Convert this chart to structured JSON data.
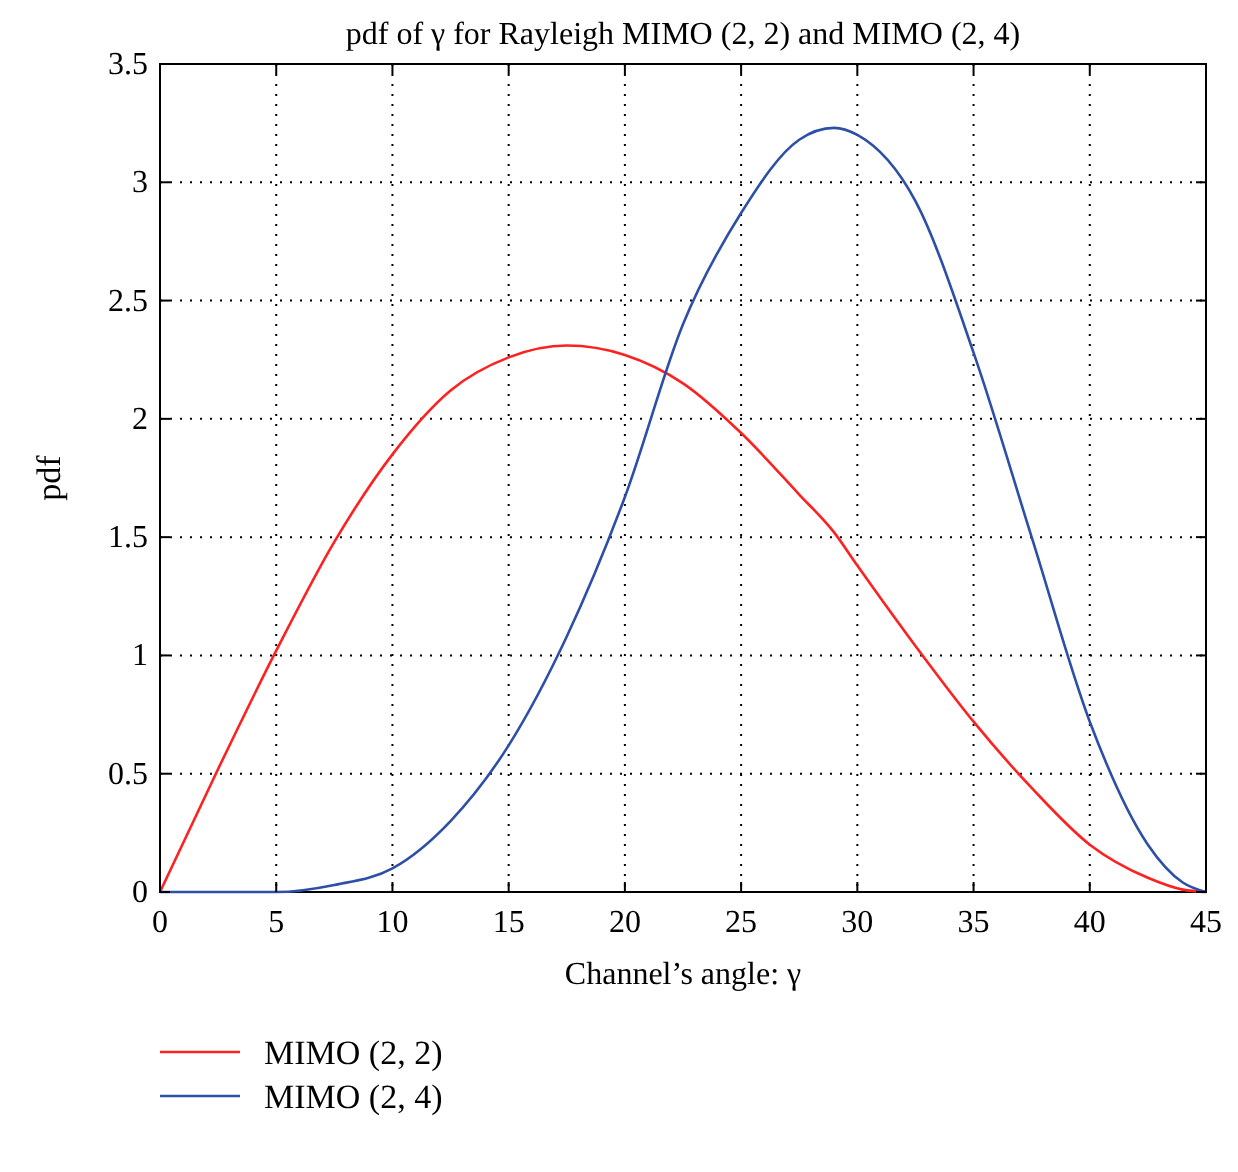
{
  "chart_data": {
    "type": "line",
    "title": "pdf of γ for Rayleigh MIMO (2, 2) and MIMO (2, 4)",
    "xlabel": "Channel’s angle: γ",
    "ylabel": "pdf",
    "x": [
      0,
      2.5,
      5,
      7.5,
      10,
      12.5,
      15,
      17.5,
      20,
      22.5,
      25,
      27.5,
      29,
      30,
      32.5,
      35,
      37.5,
      40,
      42.5,
      44,
      45
    ],
    "series": [
      {
        "name": "MIMO (2, 2)",
        "color": "#ff2020",
        "values": [
          0,
          0.52,
          1.02,
          1.48,
          1.85,
          2.12,
          2.26,
          2.31,
          2.27,
          2.15,
          1.94,
          1.68,
          1.52,
          1.38,
          1.04,
          0.72,
          0.44,
          0.2,
          0.06,
          0.01,
          0
        ]
      },
      {
        "name": "MIMO (2, 4)",
        "color": "#2e4fa8",
        "values": [
          0,
          0,
          0,
          0.03,
          0.1,
          0.3,
          0.62,
          1.08,
          1.67,
          2.4,
          2.87,
          3.18,
          3.23,
          3.2,
          2.92,
          2.28,
          1.5,
          0.72,
          0.2,
          0.04,
          0
        ]
      }
    ],
    "xlim": [
      0,
      45
    ],
    "ylim": [
      0,
      3.5
    ],
    "xticks": [
      0,
      5,
      10,
      15,
      20,
      25,
      30,
      35,
      40,
      45
    ],
    "yticks": [
      0,
      0.5,
      1,
      1.5,
      2,
      2.5,
      3,
      3.5
    ],
    "grid": true,
    "legend": "bottom left",
    "line_style": "solid",
    "marker": "none"
  }
}
